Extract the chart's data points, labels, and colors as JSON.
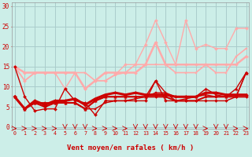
{
  "bg_color": "#cceee8",
  "grid_color": "#aacccc",
  "xlabel": "Vent moyen/en rafales ( km/h )",
  "xlabel_color": "#cc0000",
  "tick_color": "#cc0000",
  "yticks": [
    0,
    5,
    10,
    15,
    20,
    25,
    30
  ],
  "xticks": [
    0,
    1,
    2,
    3,
    4,
    5,
    6,
    7,
    8,
    9,
    10,
    11,
    12,
    13,
    14,
    15,
    16,
    17,
    18,
    19,
    20,
    21,
    22,
    23
  ],
  "ylim": [
    -0.5,
    31
  ],
  "xlim": [
    -0.3,
    23.3
  ],
  "lines": [
    {
      "y": [
        15.0,
        11.5,
        13.5,
        13.5,
        13.5,
        9.5,
        13.5,
        9.5,
        11.5,
        11.5,
        13.0,
        15.5,
        15.5,
        20.5,
        26.5,
        21.0,
        15.5,
        26.5,
        19.5,
        20.5,
        19.5,
        19.5,
        24.5,
        24.5
      ],
      "color": "#ffaaaa",
      "lw": 1.0,
      "marker": "D",
      "ms": 2.0
    },
    {
      "y": [
        15.0,
        11.5,
        13.5,
        13.5,
        13.5,
        13.5,
        13.5,
        13.5,
        11.5,
        11.5,
        13.0,
        13.5,
        15.5,
        15.5,
        15.5,
        15.5,
        13.5,
        13.5,
        13.5,
        15.5,
        13.5,
        13.5,
        17.5,
        19.5
      ],
      "color": "#ffaaaa",
      "lw": 1.2,
      "marker": "s",
      "ms": 2.0
    },
    {
      "y": [
        15.0,
        13.5,
        13.5,
        13.5,
        13.5,
        13.5,
        13.5,
        9.5,
        11.5,
        13.5,
        13.5,
        13.5,
        13.5,
        15.5,
        21.0,
        15.5,
        15.5,
        15.5,
        15.5,
        15.5,
        15.5,
        15.5,
        15.5,
        17.5
      ],
      "color": "#ffaaaa",
      "lw": 1.8,
      "marker": "D",
      "ms": 2.0
    },
    {
      "y": [
        7.5,
        4.5,
        6.0,
        6.0,
        6.0,
        6.0,
        6.0,
        4.5,
        4.5,
        6.0,
        6.5,
        6.5,
        7.0,
        7.5,
        8.5,
        8.5,
        7.5,
        7.5,
        7.5,
        8.0,
        7.5,
        7.5,
        7.5,
        13.5
      ],
      "color": "#cc0000",
      "lw": 1.0,
      "marker": "s",
      "ms": 2.0
    },
    {
      "y": [
        7.5,
        4.5,
        6.0,
        6.0,
        6.0,
        6.0,
        6.0,
        4.5,
        6.5,
        7.5,
        7.5,
        7.5,
        7.5,
        7.5,
        11.5,
        8.5,
        6.5,
        7.0,
        7.5,
        9.5,
        8.0,
        7.5,
        9.5,
        13.5
      ],
      "color": "#cc0000",
      "lw": 1.0,
      "marker": "^",
      "ms": 2.5
    },
    {
      "y": [
        7.5,
        4.5,
        6.0,
        5.0,
        6.0,
        6.0,
        6.0,
        4.5,
        6.5,
        7.5,
        7.5,
        7.5,
        7.5,
        7.5,
        7.5,
        7.5,
        6.5,
        6.5,
        6.5,
        7.5,
        7.5,
        7.5,
        7.5,
        7.5
      ],
      "color": "#cc0000",
      "lw": 1.5,
      "marker": "D",
      "ms": 2.0
    },
    {
      "y": [
        7.5,
        4.5,
        6.5,
        5.5,
        6.5,
        6.5,
        7.0,
        5.5,
        7.0,
        8.0,
        8.5,
        8.0,
        8.5,
        8.0,
        8.0,
        8.0,
        7.5,
        7.5,
        7.5,
        8.5,
        8.5,
        8.0,
        8.0,
        8.0
      ],
      "color": "#cc0000",
      "lw": 2.2,
      "marker": "D",
      "ms": 2.0
    },
    {
      "y": [
        15.0,
        7.5,
        4.0,
        4.5,
        4.5,
        9.5,
        6.5,
        6.0,
        3.0,
        6.5,
        6.5,
        6.5,
        6.5,
        6.5,
        11.5,
        6.5,
        6.5,
        6.5,
        6.5,
        6.5,
        6.5,
        6.5,
        7.5,
        13.5
      ],
      "color": "#cc0000",
      "lw": 1.0,
      "marker": "D",
      "ms": 2.0
    }
  ],
  "arrow_dirs": [
    "r",
    "r",
    "r",
    "r",
    "r",
    "d",
    "d",
    "d",
    "r",
    "r",
    "r",
    "r",
    "d",
    "d",
    "d",
    "d",
    "d",
    "d",
    "d",
    "r",
    "d",
    "d",
    "r",
    "r"
  ]
}
